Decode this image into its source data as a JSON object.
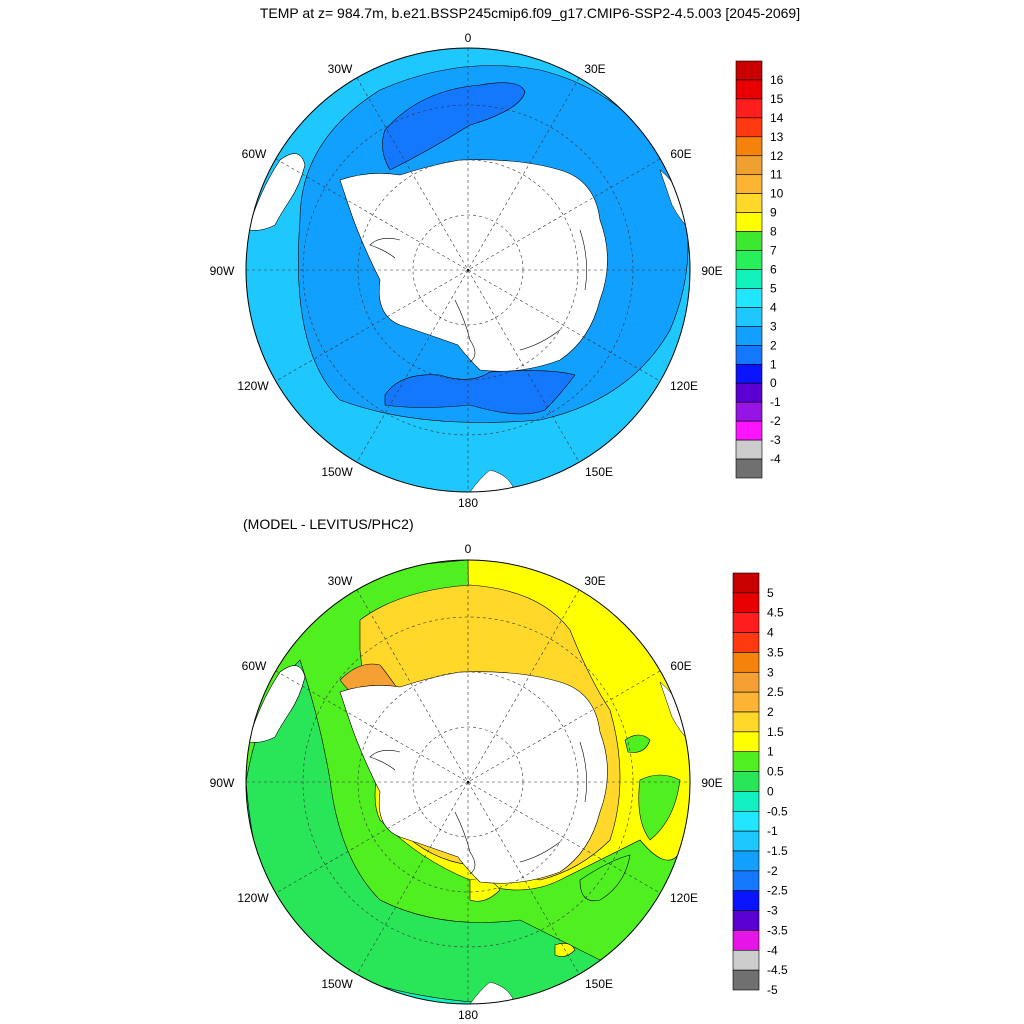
{
  "figure": {
    "title": "TEMP at z= 984.7m, b.e21.BSSP245cmip6.f09_g17.CMIP6-SSP2-4.5.003 [2045-2069]",
    "subtitle": "(MODEL - LEVITUS/PHC2)"
  },
  "map_labels": {
    "lon_0": "0",
    "lon_30e": "30E",
    "lon_60e": "60E",
    "lon_90e": "90E",
    "lon_120e": "120E",
    "lon_150e": "150E",
    "lon_180": "180",
    "lon_150w": "150W",
    "lon_120w": "120W",
    "lon_90w": "90W",
    "lon_60w": "60W",
    "lon_30w": "30W"
  },
  "top_colorbar": {
    "labels": [
      "16",
      "15",
      "14",
      "13",
      "12",
      "11",
      "10",
      "9",
      "8",
      "7",
      "6",
      "5",
      "4",
      "3",
      "2",
      "1",
      "0",
      "-1",
      "-2",
      "-3",
      "-4"
    ],
    "colors": [
      "#c80000",
      "#e80000",
      "#ff1e1e",
      "#ff3a10",
      "#f5820a",
      "#f0a030",
      "#fcb432",
      "#ffd82a",
      "#ffff00",
      "#3ce830",
      "#28f05a",
      "#12f0bc",
      "#22e6ff",
      "#1ec8ff",
      "#12a0ff",
      "#1478ff",
      "#0a14ff",
      "#5a00d2",
      "#9614e6",
      "#ff14ff",
      "#cccccc",
      "#707070"
    ]
  },
  "bottom_colorbar": {
    "labels": [
      "5",
      "4.5",
      "4",
      "3.5",
      "3",
      "2.5",
      "2",
      "1.5",
      "1",
      "0.5",
      "0",
      "-0.5",
      "-1",
      "-1.5",
      "-2",
      "-2.5",
      "-3",
      "-3.5",
      "-4",
      "-4.5",
      "-5"
    ],
    "colors": [
      "#c80000",
      "#e80000",
      "#ff1e1e",
      "#ff3a10",
      "#f5820a",
      "#f5a032",
      "#fcb432",
      "#ffd82a",
      "#ffff00",
      "#50f020",
      "#28e658",
      "#12f0c0",
      "#22e6ff",
      "#1ec8ff",
      "#12a0ff",
      "#1478ff",
      "#0a14ff",
      "#5a00d2",
      "#e614e6",
      "#cccccc",
      "#707070"
    ]
  }
}
